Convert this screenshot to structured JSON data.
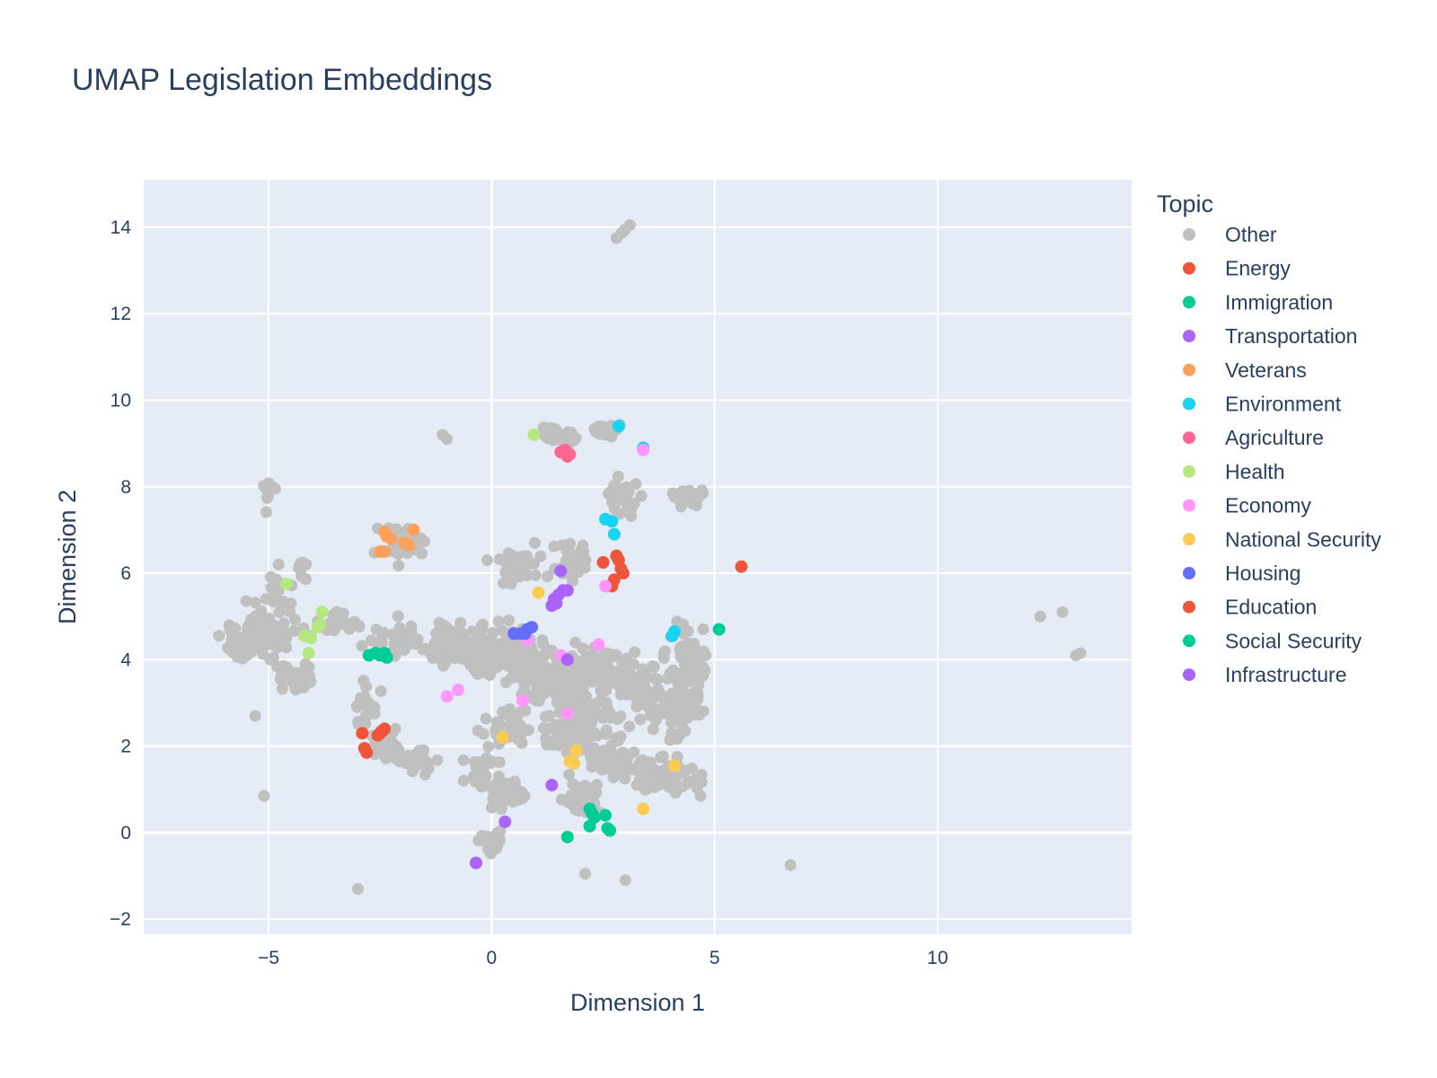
{
  "chart_data": {
    "type": "scatter",
    "title": "UMAP Legislation Embeddings",
    "xlabel": "Dimension 1",
    "ylabel": "Dimension 2",
    "xlim": [
      -7.8,
      14.35
    ],
    "ylim": [
      -2.35,
      15.1
    ],
    "x_ticks": [
      -5,
      0,
      5,
      10
    ],
    "y_ticks": [
      -2,
      0,
      2,
      4,
      6,
      8,
      10,
      12,
      14
    ],
    "x_tick_labels": [
      "−5",
      "0",
      "5",
      "10"
    ],
    "y_tick_labels": [
      "−2",
      "0",
      "2",
      "4",
      "6",
      "8",
      "10",
      "12",
      "14"
    ],
    "grid": true,
    "plot_background": "#e5ecf6",
    "legend": {
      "title": "Topic",
      "placement": "right"
    },
    "series": [
      {
        "name": "Other",
        "color": "#c0c0c0",
        "points": []
      },
      {
        "name": "Energy",
        "color": "#ef553b",
        "points": [
          [
            2.5,
            6.25
          ],
          [
            2.8,
            6.4
          ],
          [
            2.9,
            6.1
          ],
          [
            2.95,
            6.0
          ],
          [
            2.7,
            5.7
          ],
          [
            2.75,
            5.85
          ],
          [
            2.85,
            6.3
          ],
          [
            5.6,
            6.15
          ]
        ]
      },
      {
        "name": "Immigration",
        "color": "#00cc96",
        "points": [
          [
            2.2,
            0.55
          ],
          [
            2.25,
            0.45
          ],
          [
            2.3,
            0.35
          ],
          [
            2.55,
            0.4
          ],
          [
            2.2,
            0.15
          ],
          [
            2.6,
            0.1
          ],
          [
            2.65,
            0.05
          ],
          [
            1.7,
            -0.1
          ]
        ]
      },
      {
        "name": "Transportation",
        "color": "#ab63fa",
        "points": [
          [
            1.55,
            6.05
          ],
          [
            1.6,
            5.6
          ],
          [
            1.5,
            5.5
          ],
          [
            1.4,
            5.4
          ],
          [
            1.35,
            5.25
          ],
          [
            1.45,
            5.3
          ],
          [
            1.7,
            5.6
          ]
        ]
      },
      {
        "name": "Veterans",
        "color": "#ffa15a",
        "points": [
          [
            -2.4,
            6.95
          ],
          [
            -2.35,
            6.85
          ],
          [
            -2.25,
            6.8
          ],
          [
            -1.75,
            7.0
          ],
          [
            -1.95,
            6.7
          ],
          [
            -1.85,
            6.65
          ],
          [
            -2.5,
            6.5
          ],
          [
            -2.4,
            6.5
          ]
        ]
      },
      {
        "name": "Environment",
        "color": "#19d3f3",
        "points": [
          [
            2.85,
            9.4
          ],
          [
            3.4,
            8.9
          ],
          [
            2.55,
            7.25
          ],
          [
            2.7,
            7.2
          ],
          [
            2.75,
            6.9
          ],
          [
            4.1,
            4.65
          ],
          [
            4.05,
            4.55
          ]
        ]
      },
      {
        "name": "Agriculture",
        "color": "#ff6692",
        "points": [
          [
            1.55,
            8.8
          ],
          [
            1.65,
            8.85
          ],
          [
            1.75,
            8.75
          ],
          [
            1.7,
            8.7
          ],
          [
            1.6,
            8.8
          ]
        ]
      },
      {
        "name": "Health",
        "color": "#b6e880",
        "points": [
          [
            0.95,
            9.2
          ],
          [
            -4.6,
            5.75
          ],
          [
            -3.8,
            5.1
          ],
          [
            -3.85,
            4.8
          ],
          [
            -3.9,
            4.75
          ],
          [
            -4.2,
            4.55
          ],
          [
            -4.05,
            4.5
          ],
          [
            -4.1,
            4.15
          ]
        ]
      },
      {
        "name": "Economy",
        "color": "#ff97ff",
        "points": [
          [
            3.4,
            8.85
          ],
          [
            2.55,
            5.7
          ],
          [
            0.8,
            4.45
          ],
          [
            2.4,
            4.35
          ],
          [
            1.55,
            4.1
          ],
          [
            -0.75,
            3.3
          ],
          [
            -1.0,
            3.15
          ],
          [
            0.7,
            3.05
          ],
          [
            1.7,
            2.75
          ]
        ]
      },
      {
        "name": "National Security",
        "color": "#fecb52",
        "points": [
          [
            1.05,
            5.55
          ],
          [
            0.25,
            2.2
          ],
          [
            1.9,
            1.9
          ],
          [
            1.75,
            1.65
          ],
          [
            1.85,
            1.6
          ],
          [
            4.1,
            1.55
          ],
          [
            3.4,
            0.55
          ]
        ]
      },
      {
        "name": "Housing",
        "color": "#636efa",
        "points": [
          [
            0.5,
            4.6
          ],
          [
            0.65,
            4.6
          ],
          [
            0.75,
            4.6
          ],
          [
            0.8,
            4.7
          ],
          [
            0.9,
            4.75
          ]
        ]
      },
      {
        "name": "Education",
        "color": "#ef553b",
        "points": [
          [
            -2.9,
            2.3
          ],
          [
            -2.85,
            1.95
          ],
          [
            -2.8,
            1.85
          ],
          [
            -2.5,
            2.3
          ],
          [
            -2.45,
            2.35
          ],
          [
            -2.4,
            2.4
          ],
          [
            -2.55,
            2.25
          ]
        ]
      },
      {
        "name": "Social Security",
        "color": "#00cc96",
        "points": [
          [
            -2.75,
            4.1
          ],
          [
            -2.6,
            4.15
          ],
          [
            -2.5,
            4.1
          ],
          [
            -2.4,
            4.15
          ],
          [
            -2.35,
            4.05
          ],
          [
            5.1,
            4.7
          ]
        ]
      },
      {
        "name": "Infrastructure",
        "color": "#ab63fa",
        "points": [
          [
            1.7,
            4.0
          ],
          [
            1.35,
            1.1
          ],
          [
            0.3,
            0.25
          ],
          [
            -0.35,
            -0.7
          ]
        ]
      }
    ]
  }
}
